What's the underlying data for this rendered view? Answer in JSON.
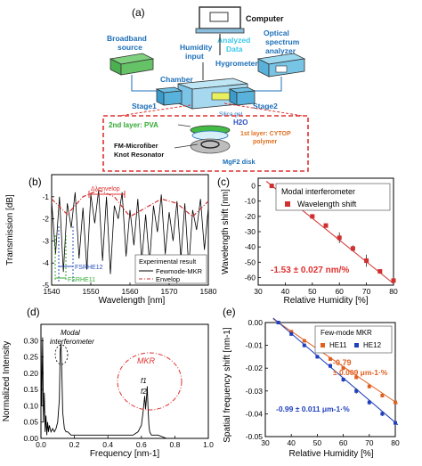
{
  "panels": {
    "a": {
      "label": "(a)",
      "computer": "Computer",
      "broadband": [
        "Broadband",
        "source"
      ],
      "humidity_input": [
        "Humidity",
        "input"
      ],
      "analyzed": [
        "Analyzed",
        "Data"
      ],
      "optical": [
        "Optical",
        "spectrum",
        "analyzer"
      ],
      "hygrometer": "Hygrometer",
      "chamber": "Chamber",
      "stage1": "Stage1",
      "stage2": "Stage2",
      "silica": "Silica gel",
      "pva": "2nd layer: PVA",
      "h2o": "H2O",
      "cytop": [
        "1st layer: CYTOP",
        "polymer"
      ],
      "fm": [
        "FM-Microfiber",
        "Knot Resonator"
      ],
      "mgf2": "MgF2 disk",
      "colors": {
        "box": "#e03030",
        "device": "#4aa8d8",
        "text_blue": "#1c6fb8",
        "green": "#33aa33"
      }
    },
    "b": {
      "label": "(b)",
      "annotations": {
        "envelope": "Δλenvelop",
        "fsr1": "FSRHE12",
        "fsr2": "FSRHE11"
      }
    },
    "c": {
      "label": "(c)",
      "slope": "-1.53 ± 0.027 nm/%"
    },
    "d": {
      "label": "(d)",
      "modal": [
        "Modal",
        "interferometer"
      ],
      "mkr": "MKR",
      "f1": "f1",
      "f2": "f2"
    },
    "e": {
      "label": "(e)",
      "slope1": [
        "-0.79",
        "± 0.009 μm-1·%"
      ],
      "slope2": "-0.99 ± 0.011 μm-1·%"
    }
  },
  "chart_data": [
    {
      "panel": "b",
      "type": "line",
      "xlabel": "Wavelength [nm]",
      "ylabel": "Transmission [dB]",
      "xlim": [
        1540,
        1580
      ],
      "ylim": [
        -5,
        0
      ],
      "xticks": [
        1540,
        1550,
        1560,
        1570,
        1580
      ],
      "yticks": [
        -1,
        -2,
        -3,
        -4,
        -5
      ],
      "legend_title": "Experimental result",
      "series": [
        {
          "name": "Fewmode-MKR",
          "color": "#000000",
          "style": "solid",
          "x": [
            1540,
            1541,
            1542,
            1543,
            1544,
            1545,
            1546,
            1547,
            1548,
            1549,
            1550,
            1551,
            1552,
            1553,
            1554,
            1555,
            1556,
            1557,
            1558,
            1559,
            1560,
            1561,
            1562,
            1563,
            1564,
            1565,
            1566,
            1567,
            1568,
            1569,
            1570,
            1571,
            1572,
            1573,
            1574,
            1575,
            1576,
            1577,
            1578,
            1579,
            1580
          ],
          "y": [
            -1.2,
            -3.6,
            -1.0,
            -4.4,
            -1.3,
            -2.4,
            -0.8,
            -3.8,
            -1.5,
            -4.3,
            -0.9,
            -2.2,
            -0.7,
            -3.9,
            -1.0,
            -4.5,
            -1.4,
            -2.0,
            -0.8,
            -3.7,
            -1.6,
            -3.2,
            -1.1,
            -3.9,
            -1.8,
            -4.0,
            -1.4,
            -2.6,
            -0.9,
            -3.6,
            -1.7,
            -3.0,
            -1.2,
            -3.8,
            -1.3,
            -4.2,
            -1.6,
            -2.5,
            -1.1,
            -3.4,
            -1.5
          ]
        },
        {
          "name": "Envelop",
          "color": "#d03030",
          "style": "dashdot",
          "x": [
            1540,
            1544,
            1548,
            1552,
            1556,
            1560,
            1564,
            1568,
            1572,
            1576,
            1580
          ],
          "y": [
            -1.1,
            -1.8,
            -1.0,
            -0.7,
            -1.0,
            -1.9,
            -1.5,
            -1.1,
            -1.3,
            -1.9,
            -1.2
          ]
        }
      ]
    },
    {
      "panel": "c",
      "type": "scatter",
      "xlabel": "Relative Humidity [%]",
      "ylabel": "Wavelength shift [nm]",
      "xlim": [
        30,
        80
      ],
      "ylim": [
        -65,
        5
      ],
      "xticks": [
        30,
        40,
        50,
        60,
        70,
        80
      ],
      "yticks": [
        0,
        -10,
        -20,
        -30,
        -40,
        -50,
        -60
      ],
      "legend_title": "Modal interferometer",
      "series": [
        {
          "name": "Wavelength shift",
          "color": "#d03030",
          "x": [
            35,
            40,
            45,
            50,
            55,
            60,
            65,
            70,
            75,
            80
          ],
          "y": [
            0,
            -8,
            -13,
            -20,
            -26,
            -34,
            -41,
            -49,
            -56,
            -62
          ],
          "err": [
            0.6,
            1.0,
            1.0,
            1.2,
            1.5,
            3.5,
            2.0,
            4.0,
            1.2,
            2.0
          ]
        }
      ]
    },
    {
      "panel": "d",
      "type": "line",
      "xlabel": "Frequency [nm-1]",
      "ylabel": "Normalized Intensity",
      "xlim": [
        0,
        1.0
      ],
      "ylim": [
        0,
        0.35
      ],
      "xticks": [
        0,
        0.2,
        0.4,
        0.6,
        0.8,
        1.0
      ],
      "yticks": [
        0,
        0.05,
        0.1,
        0.15,
        0.2,
        0.25,
        0.3
      ],
      "series": [
        {
          "name": "",
          "color": "#000000",
          "x": [
            0,
            0.005,
            0.01,
            0.015,
            0.02,
            0.025,
            0.03,
            0.035,
            0.04,
            0.045,
            0.05,
            0.06,
            0.07,
            0.08,
            0.09,
            0.1,
            0.11,
            0.115,
            0.12,
            0.125,
            0.13,
            0.14,
            0.15,
            0.16,
            0.18,
            0.2,
            0.25,
            0.3,
            0.35,
            0.4,
            0.45,
            0.5,
            0.55,
            0.58,
            0.6,
            0.61,
            0.62,
            0.625,
            0.63,
            0.635,
            0.64,
            0.645,
            0.65,
            0.66,
            0.68,
            0.7,
            0.75,
            0.8,
            0.9,
            1.0
          ],
          "y": [
            0.33,
            0.1,
            0.31,
            0.05,
            0.14,
            0.02,
            0.07,
            0.01,
            0.05,
            0.02,
            0.04,
            0.02,
            0.03,
            0.02,
            0.03,
            0.05,
            0.12,
            0.27,
            0.29,
            0.2,
            0.08,
            0.03,
            0.02,
            0.02,
            0.01,
            0.01,
            0.01,
            0.01,
            0.01,
            0.01,
            0.01,
            0.01,
            0.01,
            0.02,
            0.04,
            0.08,
            0.13,
            0.09,
            0.12,
            0.16,
            0.09,
            0.04,
            0.02,
            0.01,
            0.01,
            0.01,
            0.0,
            0.0,
            0.0,
            0.0
          ]
        }
      ]
    },
    {
      "panel": "e",
      "type": "scatter",
      "xlabel": "Relative Humidity [%]",
      "ylabel": "Spatial frequency shift [nm-1]",
      "xlim": [
        30,
        80
      ],
      "ylim": [
        -0.05,
        0.0
      ],
      "xticks": [
        30,
        40,
        50,
        60,
        70,
        80
      ],
      "yticks": [
        0.0,
        -0.01,
        -0.02,
        -0.03,
        -0.04,
        -0.05
      ],
      "legend_title": "Few-mode MKR",
      "series": [
        {
          "name": "HE11",
          "color": "#e06020",
          "x": [
            35,
            40,
            45,
            50,
            55,
            60,
            65,
            70,
            75,
            80
          ],
          "y": [
            0.0,
            -0.004,
            -0.008,
            -0.012,
            -0.016,
            -0.02,
            -0.024,
            -0.028,
            -0.032,
            -0.035
          ],
          "err": [
            0.0006,
            0.0006,
            0.0008,
            0.0008,
            0.0008,
            0.0008,
            0.0008,
            0.0008,
            0.0008,
            0.0008
          ]
        },
        {
          "name": "HE12",
          "color": "#2040c0",
          "x": [
            35,
            40,
            45,
            50,
            55,
            60,
            65,
            70,
            75,
            80
          ],
          "y": [
            0.0,
            -0.005,
            -0.01,
            -0.015,
            -0.019,
            -0.025,
            -0.03,
            -0.035,
            -0.04,
            -0.044
          ],
          "err": [
            0.0006,
            0.0008,
            0.0008,
            0.0008,
            0.001,
            0.001,
            0.0012,
            0.001,
            0.001,
            0.001
          ]
        }
      ]
    }
  ]
}
